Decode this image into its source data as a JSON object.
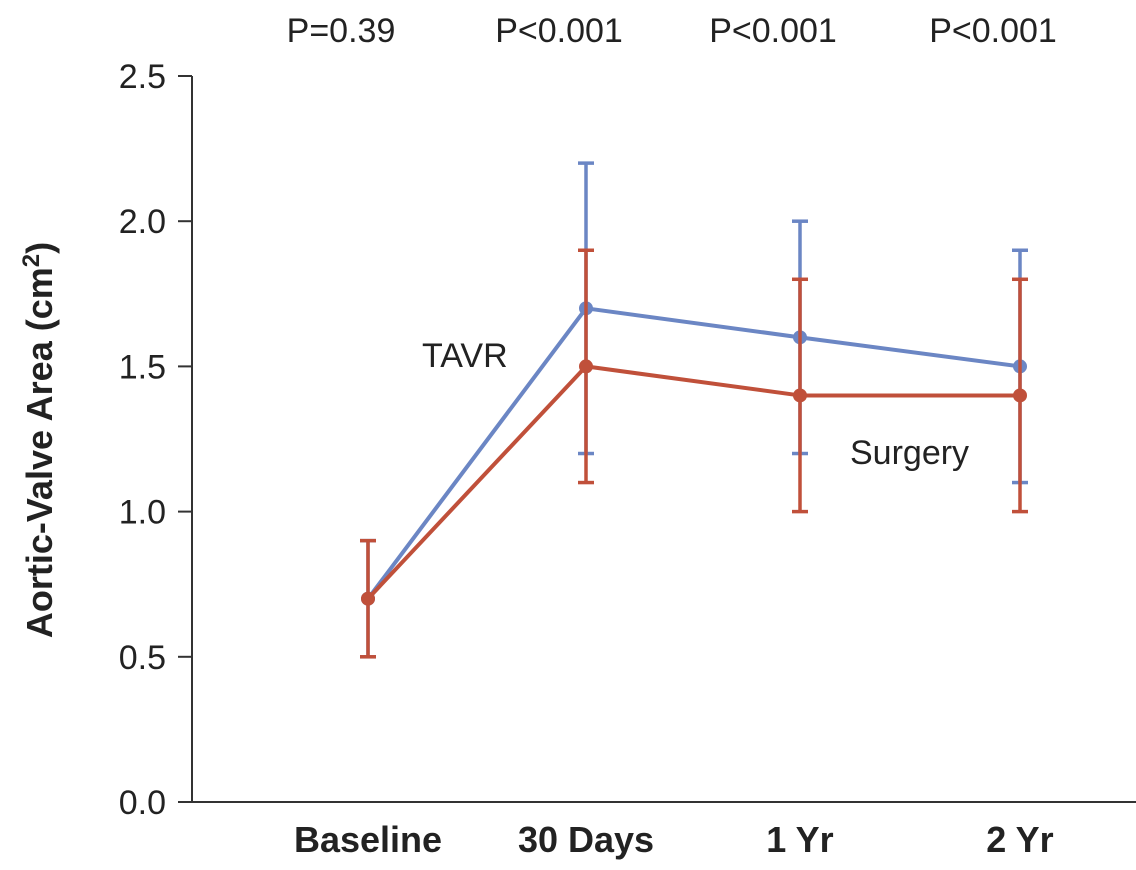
{
  "chart_data": {
    "type": "line",
    "title": "",
    "xlabel": "",
    "ylabel": "Aortic-Valve Area (cm",
    "ylabel_superscript": "2",
    "ylabel_suffix": ")",
    "categories": [
      "Baseline",
      "30 Days",
      "1 Yr",
      "2 Yr"
    ],
    "ylim": [
      0,
      2.5
    ],
    "yticks": [
      "0.0",
      "0.5",
      "1.0",
      "1.5",
      "2.0",
      "2.5"
    ],
    "p_values": [
      "P=0.39",
      "P<0.001",
      "P<0.001",
      "P<0.001"
    ],
    "grid": false,
    "legend": "inline labels",
    "series": [
      {
        "name": "TAVR",
        "color": "#6b86c4",
        "values": [
          0.7,
          1.7,
          1.6,
          1.5
        ],
        "error_low": [
          0.5,
          1.2,
          1.2,
          1.1
        ],
        "error_high": [
          0.9,
          2.2,
          2.0,
          1.9
        ]
      },
      {
        "name": "Surgery",
        "color": "#c0503a",
        "values": [
          0.7,
          1.5,
          1.4,
          1.4
        ],
        "error_low": [
          0.5,
          1.1,
          1.0,
          1.0
        ],
        "error_high": [
          0.9,
          1.9,
          1.8,
          1.8
        ]
      }
    ],
    "axis_color": "#333333"
  }
}
